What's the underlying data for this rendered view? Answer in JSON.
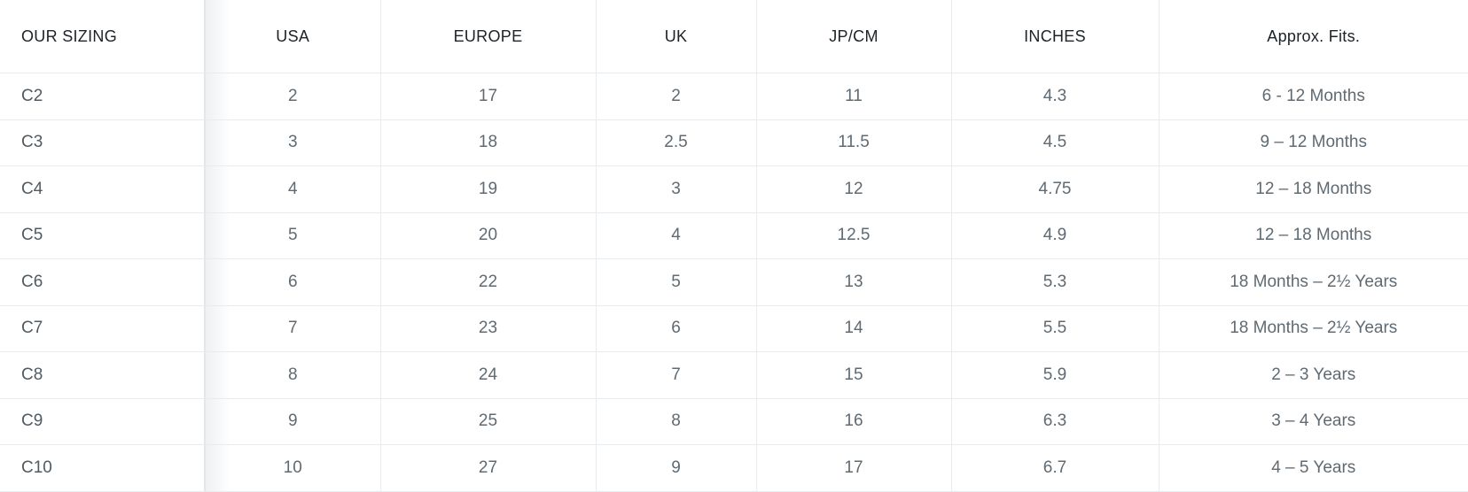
{
  "table": {
    "headers": [
      "OUR SIZING",
      "USA",
      "EUROPE",
      "UK",
      "JP/CM",
      "INCHES",
      "Approx. Fits."
    ],
    "rows": [
      [
        "C2",
        "2",
        "17",
        "2",
        "11",
        "4.3",
        "6 - 12 Months"
      ],
      [
        "C3",
        "3",
        "18",
        "2.5",
        "11.5",
        "4.5",
        "9 – 12 Months"
      ],
      [
        "C4",
        "4",
        "19",
        "3",
        "12",
        "4.75",
        "12 – 18 Months"
      ],
      [
        "C5",
        "5",
        "20",
        "4",
        "12.5",
        "4.9",
        "12 – 18 Months"
      ],
      [
        "C6",
        "6",
        "22",
        "5",
        "13",
        "5.3",
        "18 Months – 2½ Years"
      ],
      [
        "C7",
        "7",
        "23",
        "6",
        "14",
        "5.5",
        "18 Months – 2½ Years"
      ],
      [
        "C8",
        "8",
        "24",
        "7",
        "15",
        "5.9",
        "2 – 3 Years"
      ],
      [
        "C9",
        "9",
        "25",
        "8",
        "16",
        "6.3",
        "3 – 4 Years"
      ],
      [
        "C10",
        "10",
        "27",
        "9",
        "17",
        "6.7",
        "4 – 5 Years"
      ]
    ]
  },
  "colors": {
    "header_text": "#1d2226",
    "body_text": "#5f6a72",
    "border": "#e8ecef"
  }
}
